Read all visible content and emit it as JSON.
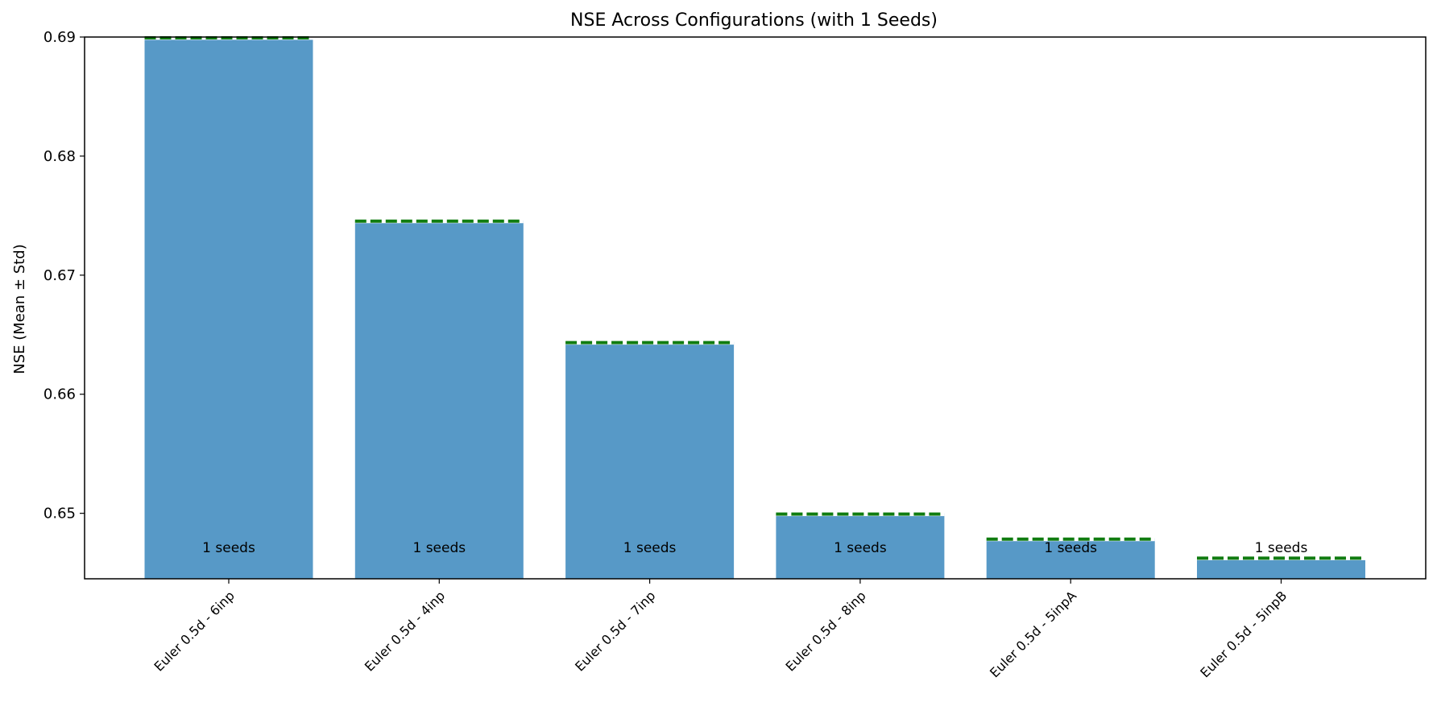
{
  "chart_data": {
    "type": "bar",
    "title": "NSE Across Configurations (with 1 Seeds)",
    "xlabel": "",
    "ylabel": "NSE (Mean ± Std)",
    "ylim": [
      0.6445,
      0.69
    ],
    "yticks": [
      0.65,
      0.66,
      0.67,
      0.68,
      0.69
    ],
    "ytick_labels": [
      "0.65",
      "0.66",
      "0.67",
      "0.68",
      "0.69"
    ],
    "categories": [
      "Euler 0.5d - 6inp",
      "Euler 0.5d - 4inp",
      "Euler 0.5d - 7inp",
      "Euler 0.5d - 8inp",
      "Euler 0.5d - 5inpA",
      "Euler 0.5d - 5inpB"
    ],
    "values": [
      0.69,
      0.6746,
      0.6644,
      0.65,
      0.6479,
      0.6463
    ],
    "annotations": [
      "1 seeds",
      "1 seeds",
      "1 seeds",
      "1 seeds",
      "1 seeds",
      "1 seeds"
    ],
    "bar_color": "#5799c7",
    "mean_line_color": "#107c10",
    "grid": false,
    "legend": "none"
  }
}
